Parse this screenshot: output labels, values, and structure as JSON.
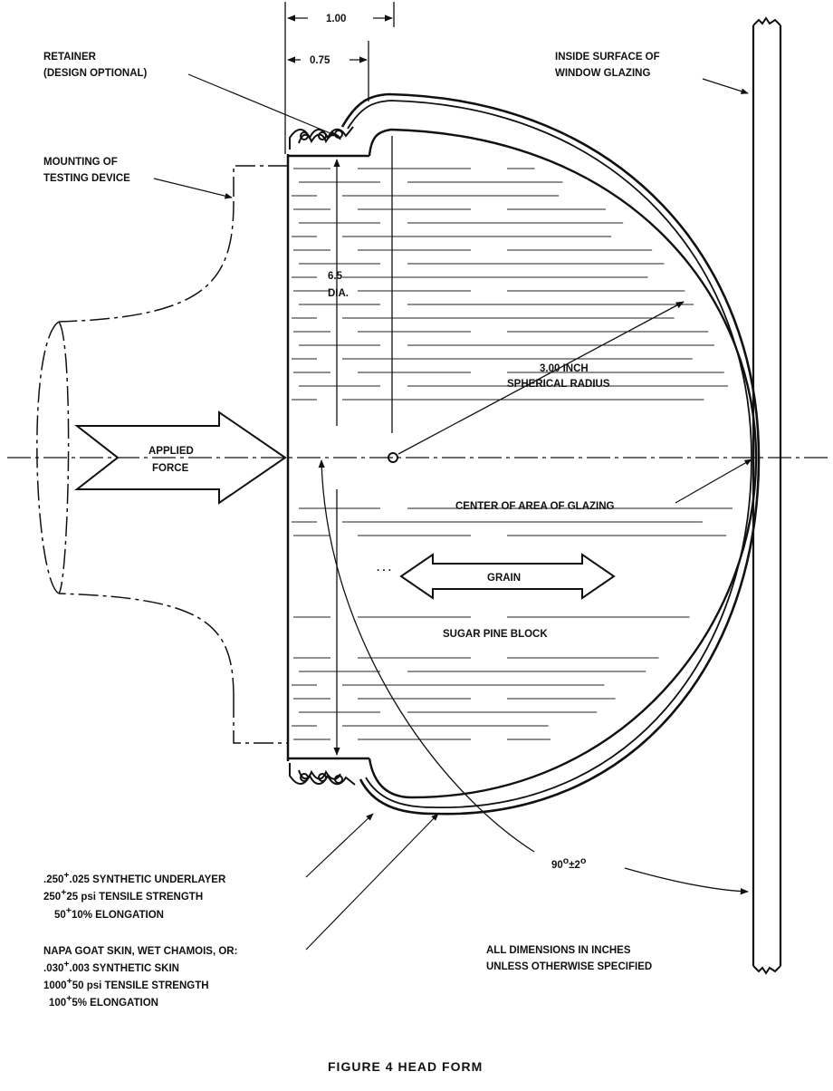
{
  "figure": {
    "caption": "FIGURE 4 HEAD FORM"
  },
  "dimensions": {
    "outer_width": "1.00",
    "inner_width": "0.75",
    "diameter_value": "6.5",
    "diameter_unit": "DIA.",
    "radius_line1": "3.00 INCH",
    "radius_line2": "SPHERICAL RADIUS",
    "angle_base": "90",
    "angle_deg": "o",
    "angle_pm": "±2",
    "angle_deg2": "o"
  },
  "labels": {
    "retainer_line1": "RETAINER",
    "retainer_line2": "(DESIGN OPTIONAL)",
    "window_line1": "INSIDE SURFACE OF",
    "window_line2": "WINDOW GLAZING",
    "mounting_line1": "MOUNTING OF",
    "mounting_line2": "TESTING DEVICE",
    "force_line1": "APPLIED",
    "force_line2": "FORCE",
    "center_glazing": "CENTER OF AREA OF GLAZING",
    "grain": "GRAIN",
    "block": "SUGAR PINE BLOCK",
    "dimensions_line1": "ALL DIMENSIONS IN INCHES",
    "dimensions_line2": "UNLESS OTHERWISE SPECIFIED"
  },
  "underlayer": {
    "line1_value": ".250",
    "line1_pm": "+",
    "line1_rest": ".025 SYNTHETIC UNDERLAYER",
    "line2_value": "250",
    "line2_pm": "+",
    "line2_rest": "25  psi TENSILE STRENGTH",
    "line3_value": "50",
    "line3_pm": "+",
    "line3_rest": "10% ELONGATION"
  },
  "skin": {
    "line1": "NAPA GOAT SKIN, WET CHAMOIS, OR:",
    "line2_value": ".030",
    "line2_pm": "+",
    "line2_rest": ".003 SYNTHETIC SKIN",
    "line3_value": "1000",
    "line3_pm": "+",
    "line3_rest": "50  psi TENSILE STRENGTH",
    "line4_value": "100",
    "line4_pm": "+",
    "line4_rest": "5% ELONGATION"
  }
}
